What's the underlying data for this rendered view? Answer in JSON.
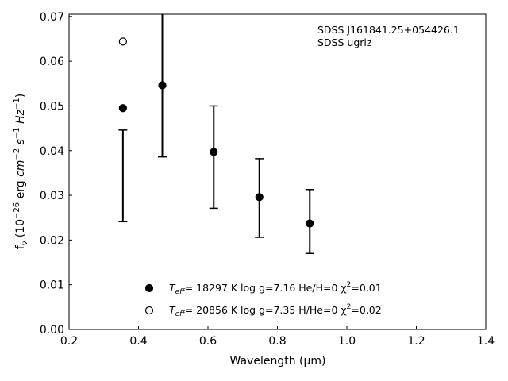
{
  "chart_data": {
    "type": "scatter",
    "xlabel": "Wavelength (μm)",
    "ylabel": "fν (10⁻²⁶ erg cm⁻² s⁻¹ Hz⁻¹)",
    "xlim": [
      0.2,
      1.4
    ],
    "ylim": [
      0.0,
      0.0705
    ],
    "x_ticks": [
      "0.2",
      "0.4",
      "0.6",
      "0.8",
      "1.0",
      "1.2",
      "1.4"
    ],
    "y_ticks": [
      "0.00",
      "0.01",
      "0.02",
      "0.03",
      "0.04",
      "0.05",
      "0.06",
      "0.07"
    ],
    "grid": false,
    "annotation": [
      "SDSS J161841.25+054426.1",
      "SDSS ugriz"
    ],
    "observed": {
      "x": [
        0.3551,
        0.4686,
        0.6166,
        0.748,
        0.8932
      ],
      "y_low": [
        0.0241,
        0.0386,
        0.0271,
        0.0206,
        0.017
      ],
      "y_high": [
        0.0446,
        0.0705,
        0.05,
        0.0382,
        0.0313
      ]
    },
    "series": [
      {
        "name": "T_eff= 18297 K  log g=7.16  He/H=0  χ²=0.01",
        "marker": "filled",
        "x": [
          0.3551,
          0.4686,
          0.6166,
          0.748,
          0.8932
        ],
        "y": [
          0.0495,
          0.0546,
          0.0397,
          0.0296,
          0.0237
        ]
      },
      {
        "name": "T_eff= 20856 K  log g=7.35  H/He=0  χ²=0.02",
        "marker": "open",
        "x": [
          0.3551
        ],
        "y": [
          0.0644
        ]
      }
    ],
    "legend": {
      "position": "lower-center",
      "entries": [
        {
          "pre": "T",
          "sub": "eff",
          "post": "= 18297 K  log g=7.16  He/H=0  χ",
          "sup": "2",
          "tail": "=0.01"
        },
        {
          "pre": "T",
          "sub": "eff",
          "post": "= 20856 K  log g=7.35  H/He=0  χ",
          "sup": "2",
          "tail": "=0.02"
        }
      ]
    },
    "colors": {
      "marker": "#000000",
      "errorbar": "#000000",
      "axes": "#000000"
    }
  }
}
